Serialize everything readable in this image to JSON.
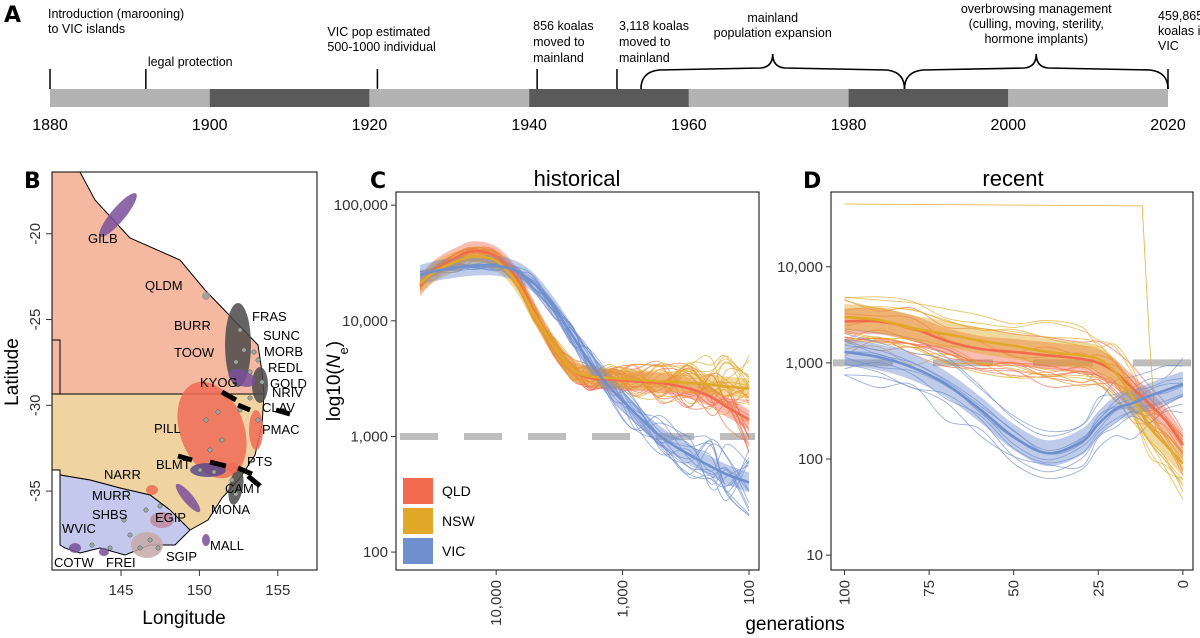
{
  "colors": {
    "QLD": "#f26b4f",
    "NSW": "#e0a92a",
    "VIC": "#6f8fcf",
    "dark": "#5a5a5a",
    "light": "#b3b3b3",
    "ref": "#bdbdbd"
  },
  "panelA": {
    "letter": "A",
    "years": [
      "1880",
      "1900",
      "1920",
      "1940",
      "1960",
      "1980",
      "2000",
      "2020"
    ],
    "events": [
      {
        "year": 1880,
        "lines": [
          "Introduction (marooning)",
          "to VIC islands"
        ],
        "side": "right"
      },
      {
        "year": 1892,
        "lines": [
          "legal protection"
        ],
        "side": "right"
      },
      {
        "year": 1921,
        "lines": [
          "VIC pop estimated",
          "500-1000 individual"
        ],
        "side": "left"
      },
      {
        "year": 1941,
        "lines": [
          "856 koalas",
          "moved to",
          "mainland"
        ],
        "side": "left"
      },
      {
        "year": 1951,
        "lines": [
          "3,118 koalas",
          "moved to",
          "mainland"
        ],
        "side": "left"
      },
      {
        "year": 2020,
        "lines": [
          "459,865",
          "koalas in",
          "VIC"
        ],
        "side": "center"
      }
    ],
    "braces": [
      {
        "from": 1954,
        "to": 1987,
        "lines": [
          "mainland",
          "population expansion"
        ]
      },
      {
        "from": 1987,
        "to": 2020,
        "lines": [
          "overbrowsing management",
          "(culling, moving, sterility,",
          "hormone implants)"
        ]
      }
    ]
  },
  "panelB": {
    "letter": "B",
    "xlabel": "Longitude",
    "ylabel": "Latitude",
    "xticks": [
      "145",
      "150",
      "155"
    ],
    "yticks": [
      "-20",
      "-25",
      "-30",
      "-35"
    ],
    "sites": [
      {
        "code": "GILB",
        "lon": 146.8,
        "lat": -19.2,
        "state": "QLD"
      },
      {
        "code": "QLDM",
        "lon": 147.9,
        "lat": -22.3,
        "state": "QLD"
      },
      {
        "code": "FRAS",
        "lon": 153.1,
        "lat": -25.2,
        "state": "QLD"
      },
      {
        "code": "BURR",
        "lon": 150.4,
        "lat": -25.6,
        "state": "QLD"
      },
      {
        "code": "SUNC",
        "lon": 153.0,
        "lat": -26.6,
        "state": "QLD"
      },
      {
        "code": "MORB",
        "lon": 153.0,
        "lat": -27.3,
        "state": "QLD"
      },
      {
        "code": "TOOW",
        "lon": 150.1,
        "lat": -27.5,
        "state": "QLD"
      },
      {
        "code": "REDL",
        "lon": 153.2,
        "lat": -27.9,
        "state": "QLD"
      },
      {
        "code": "GOLD",
        "lon": 153.4,
        "lat": -28.4,
        "state": "QLD"
      },
      {
        "code": "KYOG",
        "lon": 150.3,
        "lat": -28.8,
        "state": "NSW"
      },
      {
        "code": "NRIV",
        "lon": 153.6,
        "lat": -29.0,
        "state": "NSW"
      },
      {
        "code": "CLAV",
        "lon": 153.2,
        "lat": -29.6,
        "state": "NSW"
      },
      {
        "code": "PILL",
        "lon": 147.0,
        "lat": -31.4,
        "state": "NSW"
      },
      {
        "code": "PMAC",
        "lon": 153.2,
        "lat": -31.4,
        "state": "NSW"
      },
      {
        "code": "PTS",
        "lon": 151.8,
        "lat": -32.8,
        "state": "NSW"
      },
      {
        "code": "BLMT",
        "lon": 147.6,
        "lat": -33.0,
        "state": "NSW"
      },
      {
        "code": "NARR",
        "lon": 143.0,
        "lat": -33.6,
        "state": "NSW"
      },
      {
        "code": "CAMT",
        "lon": 150.5,
        "lat": -34.3,
        "state": "NSW"
      },
      {
        "code": "MURR",
        "lon": 142.1,
        "lat": -34.6,
        "state": "VIC"
      },
      {
        "code": "SHBS",
        "lon": 142.2,
        "lat": -35.6,
        "state": "VIC"
      },
      {
        "code": "EGIP",
        "lon": 147.4,
        "lat": -35.8,
        "state": "VIC"
      },
      {
        "code": "MONA",
        "lon": 150.3,
        "lat": -35.5,
        "state": "NSW"
      },
      {
        "code": "WVIC",
        "lon": 140.6,
        "lat": -36.5,
        "state": "VIC"
      },
      {
        "code": "MALL",
        "lon": 150.3,
        "lat": -37.5,
        "state": "VIC"
      },
      {
        "code": "SGIP",
        "lon": 147.0,
        "lat": -38.7,
        "state": "VIC"
      },
      {
        "code": "COTW",
        "lon": 140.7,
        "lat": -38.9,
        "state": "VIC"
      },
      {
        "code": "FREI",
        "lon": 143.6,
        "lat": -38.9,
        "state": "VIC"
      }
    ]
  },
  "legend": [
    "QLD",
    "NSW",
    "VIC"
  ],
  "xlabel_shared": "generations",
  "chart_data": [
    {
      "panel": "C",
      "type": "line",
      "title": "historical",
      "ylabel": "log10(N_e)",
      "ylabel_base": "log10(",
      "ylabel_n": "N",
      "ylabel_sub": "e",
      "ylabel_close": ")",
      "xscale": "log",
      "xaxis_reversed": true,
      "xlim": [
        62000,
        100
      ],
      "xticks": [
        "10,000",
        "1,000",
        "100"
      ],
      "yscale": "log",
      "ylim": [
        70,
        130000
      ],
      "yticks": [
        "100",
        "1,000",
        "10,000",
        "100,000"
      ],
      "reference_line": 1000,
      "series": [
        {
          "name": "QLD",
          "x": [
            40000,
            30000,
            20000,
            15000,
            10000,
            7000,
            5000,
            3500,
            2500,
            1800,
            1200,
            800,
            500,
            300,
            200,
            150,
            100
          ],
          "y": [
            20000,
            28000,
            36000,
            40000,
            36000,
            24000,
            12000,
            6000,
            3800,
            3200,
            3100,
            3000,
            2900,
            2600,
            2200,
            1800,
            1400
          ]
        },
        {
          "name": "NSW",
          "x": [
            40000,
            30000,
            20000,
            15000,
            10000,
            7000,
            5000,
            3500,
            2500,
            1800,
            1200,
            800,
            500,
            300,
            200,
            150,
            100
          ],
          "y": [
            21000,
            27000,
            33000,
            36000,
            33000,
            22000,
            11500,
            6000,
            3800,
            3300,
            3200,
            3100,
            3000,
            2900,
            2800,
            2700,
            2600
          ]
        },
        {
          "name": "VIC",
          "x": [
            40000,
            30000,
            20000,
            15000,
            10000,
            7000,
            5000,
            3500,
            2500,
            1800,
            1200,
            800,
            500,
            300,
            200,
            150,
            100
          ],
          "y": [
            25000,
            27000,
            29000,
            30000,
            30000,
            27000,
            21000,
            13000,
            7500,
            4300,
            2500,
            1600,
            1000,
            700,
            550,
            470,
            400
          ]
        }
      ]
    },
    {
      "panel": "D",
      "type": "line",
      "title": "recent",
      "xaxis_reversed": true,
      "xlim": [
        104,
        -3
      ],
      "xticks": [
        "100",
        "75",
        "50",
        "25",
        "0"
      ],
      "yscale": "log",
      "ylim": [
        7,
        60000
      ],
      "yticks": [
        "10",
        "100",
        "1,000",
        "10,000"
      ],
      "reference_line": 1000,
      "series": [
        {
          "name": "QLD",
          "x": [
            100,
            90,
            80,
            70,
            60,
            50,
            40,
            30,
            25,
            20,
            15,
            10,
            5,
            0
          ],
          "y": [
            2700,
            2700,
            2300,
            1700,
            1400,
            1300,
            1200,
            1100,
            1000,
            800,
            550,
            380,
            250,
            140
          ]
        },
        {
          "name": "NSW",
          "x": [
            100,
            90,
            80,
            70,
            60,
            50,
            40,
            30,
            25,
            20,
            15,
            10,
            5,
            0
          ],
          "y": [
            3000,
            2800,
            2300,
            2000,
            1700,
            1500,
            1300,
            1200,
            1100,
            800,
            450,
            220,
            140,
            90
          ]
        },
        {
          "name": "VIC",
          "x": [
            100,
            90,
            80,
            70,
            60,
            50,
            40,
            30,
            25,
            20,
            15,
            10,
            5,
            0
          ],
          "y": [
            1300,
            1150,
            900,
            600,
            330,
            170,
            115,
            150,
            230,
            330,
            380,
            450,
            520,
            600
          ]
        }
      ]
    }
  ]
}
